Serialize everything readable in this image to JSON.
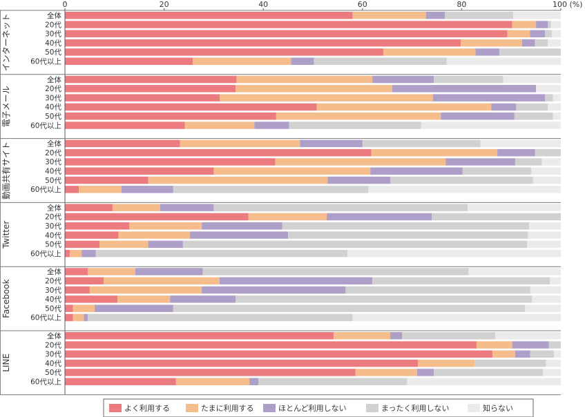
{
  "chart_data": {
    "type": "bar",
    "orientation": "horizontal",
    "stacked": true,
    "x_axis": {
      "min": 0,
      "max": 100,
      "ticks": [
        0,
        20,
        40,
        60,
        80,
        100
      ],
      "tick_labels": [
        "0",
        "20",
        "40",
        "60",
        "80",
        "100 (%)"
      ],
      "position": "top"
    },
    "grid": false,
    "legend": {
      "position": "bottom",
      "entries": [
        "よく利用する",
        "たまに利用する",
        "ほとんど利用しない",
        "まったく利用しない",
        "知らない"
      ]
    },
    "colors": [
      "#ec7b80",
      "#f5bc8c",
      "#ad9fc7",
      "#d1d1d1",
      "#ebebeb"
    ],
    "categories": [
      "全体",
      "20代",
      "30代",
      "40代",
      "50代",
      "60代以上"
    ],
    "groups": [
      {
        "name": "インターネット",
        "rows": [
          [
            58.0,
            14.8,
            3.8,
            13.8,
            9.6
          ],
          [
            90.2,
            4.8,
            2.4,
            0.6,
            2.0
          ],
          [
            89.2,
            4.6,
            3.0,
            1.4,
            1.8
          ],
          [
            79.8,
            12.4,
            2.6,
            2.6,
            2.6
          ],
          [
            64.2,
            18.6,
            4.8,
            12.4,
            0.0
          ],
          [
            25.8,
            19.8,
            4.6,
            26.8,
            23.0
          ]
        ]
      },
      {
        "name": "電子メール",
        "rows": [
          [
            34.6,
            27.4,
            12.4,
            14.0,
            11.6
          ],
          [
            34.4,
            31.6,
            29.0,
            0.0,
            5.0
          ],
          [
            31.2,
            43.0,
            22.6,
            1.6,
            1.6
          ],
          [
            50.8,
            35.2,
            5.0,
            6.4,
            2.6
          ],
          [
            42.6,
            33.2,
            14.8,
            7.8,
            1.6
          ],
          [
            24.2,
            14.0,
            7.0,
            26.6,
            28.2
          ]
        ]
      },
      {
        "name": "動画共有サイト",
        "rows": [
          [
            23.2,
            24.2,
            12.6,
            23.8,
            16.2
          ],
          [
            61.8,
            25.4,
            7.6,
            5.2,
            0.0
          ],
          [
            42.4,
            34.4,
            14.0,
            5.4,
            3.8
          ],
          [
            30.0,
            31.6,
            18.6,
            13.8,
            6.0
          ],
          [
            16.8,
            36.2,
            12.6,
            28.8,
            5.6
          ],
          [
            2.8,
            8.6,
            10.4,
            39.4,
            38.8
          ]
        ]
      },
      {
        "name": "Twitter",
        "rows": [
          [
            9.6,
            9.6,
            10.8,
            51.2,
            18.8
          ],
          [
            37.0,
            15.8,
            21.2,
            26.0,
            0.0
          ],
          [
            13.0,
            14.6,
            16.2,
            49.8,
            6.4
          ],
          [
            10.8,
            14.4,
            19.8,
            48.4,
            6.6
          ],
          [
            7.0,
            9.8,
            7.0,
            69.4,
            6.8
          ],
          [
            1.0,
            2.4,
            2.8,
            50.8,
            43.0
          ]
        ]
      },
      {
        "name": "Facebook",
        "rows": [
          [
            4.6,
            9.6,
            13.6,
            53.6,
            18.6
          ],
          [
            7.8,
            23.4,
            30.8,
            35.8,
            2.2
          ],
          [
            5.0,
            22.6,
            29.0,
            37.2,
            6.2
          ],
          [
            10.6,
            10.6,
            13.2,
            59.8,
            5.8
          ],
          [
            1.6,
            4.4,
            15.8,
            71.0,
            7.2
          ],
          [
            1.6,
            2.2,
            0.8,
            53.4,
            42.0
          ]
        ]
      },
      {
        "name": "LINE",
        "rows": [
          [
            54.2,
            11.4,
            2.4,
            18.8,
            13.2
          ],
          [
            83.0,
            7.2,
            7.4,
            2.4,
            0.0
          ],
          [
            86.2,
            4.6,
            3.0,
            4.8,
            1.4
          ],
          [
            71.2,
            11.4,
            0.0,
            14.4,
            3.0
          ],
          [
            58.6,
            12.4,
            3.4,
            22.0,
            3.6
          ],
          [
            22.4,
            14.8,
            1.8,
            30.0,
            31.0
          ]
        ]
      }
    ]
  }
}
